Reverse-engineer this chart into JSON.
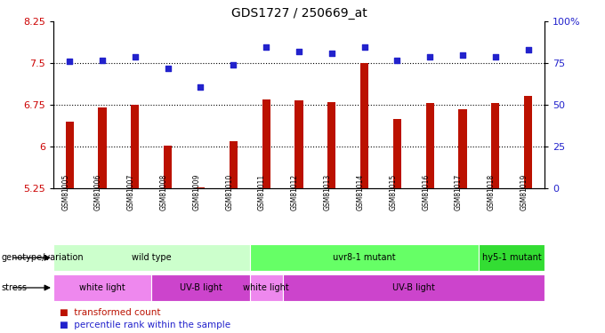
{
  "title": "GDS1727 / 250669_at",
  "samples": [
    "GSM81005",
    "GSM81006",
    "GSM81007",
    "GSM81008",
    "GSM81009",
    "GSM81010",
    "GSM81011",
    "GSM81012",
    "GSM81013",
    "GSM81014",
    "GSM81015",
    "GSM81016",
    "GSM81017",
    "GSM81018",
    "GSM81019"
  ],
  "bar_values": [
    6.45,
    6.7,
    6.75,
    6.02,
    5.27,
    6.1,
    6.85,
    6.83,
    6.8,
    7.5,
    6.5,
    6.78,
    6.68,
    6.78,
    6.92
  ],
  "dot_values": [
    76,
    77,
    79,
    72,
    61,
    74,
    85,
    82,
    81,
    85,
    77,
    79,
    80,
    79,
    83
  ],
  "ylim": [
    5.25,
    8.25
  ],
  "yticks": [
    5.25,
    6.0,
    6.75,
    7.5,
    8.25
  ],
  "ytick_labels": [
    "5.25",
    "6",
    "6.75",
    "7.5",
    "8.25"
  ],
  "y2lim": [
    0,
    100
  ],
  "y2ticks": [
    0,
    25,
    50,
    75,
    100
  ],
  "y2tick_labels": [
    "0",
    "25",
    "50",
    "75",
    "100%"
  ],
  "dotted_lines": [
    6.0,
    6.75,
    7.5
  ],
  "bar_color": "#bb1100",
  "dot_color": "#2222cc",
  "genotype_groups": [
    {
      "label": "wild type",
      "start": 0,
      "end": 6,
      "color": "#ccffcc"
    },
    {
      "label": "uvr8-1 mutant",
      "start": 6,
      "end": 13,
      "color": "#66ff66"
    },
    {
      "label": "hy5-1 mutant",
      "start": 13,
      "end": 15,
      "color": "#33dd33"
    }
  ],
  "stress_groups": [
    {
      "label": "white light",
      "start": 0,
      "end": 3,
      "color": "#ee88ee"
    },
    {
      "label": "UV-B light",
      "start": 3,
      "end": 6,
      "color": "#cc44cc"
    },
    {
      "label": "white light",
      "start": 6,
      "end": 7,
      "color": "#ee88ee"
    },
    {
      "label": "UV-B light",
      "start": 7,
      "end": 15,
      "color": "#cc44cc"
    }
  ],
  "legend_red_label": "transformed count",
  "legend_blue_label": "percentile rank within the sample",
  "xlabel_genotype": "genotype/variation",
  "xlabel_stress": "stress",
  "bar_color_legend": "#bb1100",
  "dot_color_legend": "#2222cc",
  "bg_color": "#ffffff",
  "tick_label_color_left": "#cc0000",
  "tick_label_color_right": "#2222cc",
  "bar_bottom": 5.25,
  "bar_width": 0.25
}
